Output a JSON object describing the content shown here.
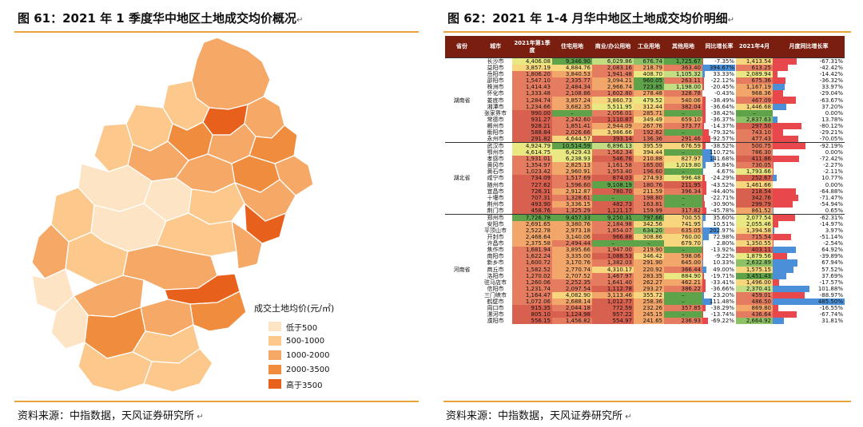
{
  "figure61": {
    "title": "图 61：2021 年 1 季度华中地区土地成交均价概况",
    "source": "资料来源：中指数据，天风证券研究所",
    "legend": {
      "title": "成交土地均价(元/㎡)",
      "items": [
        {
          "label": "低于500",
          "color": "#fde4c4"
        },
        {
          "label": "500-1000",
          "color": "#fcc88c"
        },
        {
          "label": "1000-2000",
          "color": "#f6a867"
        },
        {
          "label": "2000-3500",
          "color": "#ef8c3d"
        },
        {
          "label": "高于3500",
          "color": "#e8611c"
        }
      ]
    }
  },
  "figure62": {
    "title": "图 62：2021 年 1-4 月华中地区土地成交均价明细",
    "source": "资料来源：中指数据，天风证券研究所",
    "headers": [
      "省份",
      "城市",
      "2021年第1季度",
      "住宅用地",
      "商业/办公用地",
      "工业用地",
      "其他用地",
      "同比增长率",
      "2021年4月",
      "月度同比增长率"
    ],
    "groups": [
      {
        "province": "湖南省",
        "rows": [
          [
            "长沙市",
            "4,406.08",
            "9,346.90",
            "6,029.86",
            "676.74",
            "1,725.67",
            "-7.35%",
            "1,413.54",
            "-67.31%"
          ],
          [
            "益阳市",
            "3,857.19",
            "4,884.76",
            "2,083.16",
            "218.79",
            "363.40",
            "394.67%",
            "613.25",
            "-42.42%"
          ],
          [
            "岳阳市",
            "1,806.20",
            "3,840.53",
            "1,941.48",
            "408.70",
            "1,105.32",
            "33.33%",
            "2,089.94",
            "-14.42%"
          ],
          [
            "邵阳市",
            "1,547.10",
            "2,335.77",
            "3,094.21",
            "960.05",
            "263.11",
            "-22.12%",
            "675.36",
            "-36.32%"
          ],
          [
            "株洲市",
            "1,414.43",
            "2,484.34",
            "2,966.74",
            "723.85",
            "1,198.00",
            "-20.45%",
            "1,167.19",
            "33.97%"
          ],
          [
            "怀化市",
            "1,333.48",
            "2,108.86",
            "1,602.80",
            "278.48",
            "328.78",
            "-0.43%",
            "968.36",
            "-29.04%"
          ],
          [
            "娄底市",
            "1,284.74",
            "3,857.24",
            "3,860.73",
            "479.52",
            "540.06",
            "-38.49%",
            "467.09",
            "-63.67%"
          ],
          [
            "湘潭市",
            "1,234.66",
            "3,682.35",
            "5,511.95",
            "312.44",
            "382.04",
            "-36.64%",
            "1,446.68",
            "37.20%"
          ],
          [
            "张家界市",
            "990.00",
            "–",
            "2,056.01",
            "285.71",
            "–",
            "-38.42%",
            "–",
            "0.00%"
          ],
          [
            "常德市",
            "931.27",
            "2,242.60",
            "1,110.87",
            "349.49",
            "659.10",
            "-36.37%",
            "2,837.63",
            "13.78%"
          ],
          [
            "郴州市",
            "928.21",
            "1,851.41",
            "2,944.09",
            "267.76",
            "373.77",
            "-14.37%",
            "297.50",
            "-80.12%"
          ],
          [
            "衡阳市",
            "588.84",
            "2,026.66",
            "3,986.66",
            "192.82",
            "–",
            "-79.32%",
            "743.10",
            "-29.21%"
          ],
          [
            "永州市",
            "291.82",
            "4,644.57",
            "393.14",
            "136.36",
            "291.46",
            "-92.57%",
            "477.43",
            "-70.05%"
          ]
        ]
      },
      {
        "province": "湖北省",
        "rows": [
          [
            "武汉市",
            "4,924.79",
            "10,514.59",
            "6,896.13",
            "395.59",
            "676.59",
            "-38.52%",
            "500.75",
            "-92.19%"
          ],
          [
            "鄂州市",
            "4,614.75",
            "6,429.43",
            "1,562.34",
            "394.44",
            "–",
            "110.72%",
            "786.30",
            "0.00%"
          ],
          [
            "孝感市",
            "1,931.01",
            "6,238.93",
            "546.76",
            "210.88",
            "827.97",
            "141.68%",
            "411.86",
            "-72.42%"
          ],
          [
            "黄冈市",
            "1,354.97",
            "2,825.13",
            "1,161.58",
            "165.00",
            "1,019.80",
            "35.84%",
            "730.05",
            "-2.27%"
          ],
          [
            "黄石市",
            "1,023.42",
            "2,960.91",
            "1,953.40",
            "196.60",
            "–",
            "4.67%",
            "1,793.66",
            "-2.11%"
          ],
          [
            "咸宁市",
            "734.09",
            "1,517.69",
            "874.03",
            "274.93",
            "996.48",
            "-24.29%",
            "252.67",
            "10.77%"
          ],
          [
            "随州市",
            "727.62",
            "1,596.60",
            "9,108.19",
            "180.76",
            "211.95",
            "-43.52%",
            "1,461.66",
            "0.00%"
          ],
          [
            "宜昌市",
            "726.31",
            "2,912.87",
            "780.70",
            "211.59",
            "396.34",
            "-44.40%",
            "218.54",
            "-64.88%"
          ],
          [
            "十堰市",
            "707.31",
            "1,328.61",
            "–",
            "198.80",
            "–",
            "-22.71%",
            "342.76",
            "-71.47%"
          ],
          [
            "荆州市",
            "493.90",
            "3,336.15",
            "482.73",
            "163.81",
            "–",
            "-30.90%",
            "299.79",
            "-54.94%"
          ],
          [
            "荆门市",
            "458.76",
            "1,325.29",
            "1,121.17",
            "159.99",
            "317.82",
            "-45.78%",
            "861.52",
            "0.65%"
          ]
        ]
      },
      {
        "province": "河南省",
        "rows": [
          [
            "郑州市",
            "7,726.78",
            "9,457.33",
            "9,250.31",
            "797.66",
            "700.55",
            "35.60%",
            "2,077.54",
            "-62.31%"
          ],
          [
            "安阳市",
            "2,691.65",
            "3,380.76",
            "2,184.98",
            "342.56",
            "741.95",
            "10.51%",
            "2,055.46",
            "-14.97%"
          ],
          [
            "平顶山市",
            "2,522.78",
            "2,973.18",
            "1,854.07",
            "634.20",
            "635.05",
            "202.97%",
            "1,394.58",
            "3.97%"
          ],
          [
            "开封市",
            "2,468.64",
            "3,140.06",
            "966.88",
            "308.86",
            "760.00",
            "72.98%",
            "715.54",
            "-51.14%"
          ],
          [
            "许昌市",
            "2,375.58",
            "2,494.44",
            "–",
            "–",
            "679.70",
            "2.80%",
            "1,350.55",
            "-2.54%"
          ],
          [
            "焦作市",
            "1,681.94",
            "3,895.66",
            "1,947.00",
            "219.90",
            "–",
            "-13.92%",
            "403.11",
            "64.92%"
          ],
          [
            "南阳市",
            "1,622.24",
            "3,335.00",
            "1,088.53",
            "346.42",
            "598.06",
            "-9.22%",
            "1,879.56",
            "-39.89%"
          ],
          [
            "新乡市",
            "1,600.72",
            "3,170.76",
            "1,382.03",
            "291.90",
            "645.00",
            "10.33%",
            "2,632.89",
            "67.94%"
          ],
          [
            "商丘市",
            "1,582.52",
            "2,770.74",
            "4,310.17",
            "220.92",
            "366.44",
            "49.00%",
            "1,575.15",
            "57.52%"
          ],
          [
            "洛阳市",
            "1,270.02",
            "2,707.52",
            "1,467.97",
            "283.35",
            "884.90",
            "-19.71%",
            "3,451.43",
            "37.69%"
          ],
          [
            "驻马店市",
            "1,260.06",
            "2,252.35",
            "1,641.40",
            "262.27",
            "462.21",
            "-33.41%",
            "1,496.00",
            "-17.57%"
          ],
          [
            "信阳市",
            "1,231.74",
            "2,097.54",
            "1,112.78",
            "293.27",
            "386.22",
            "-36.66%",
            "2,370.41",
            "101.88%"
          ],
          [
            "三门峡市",
            "1,164.47",
            "4,082.90",
            "3,113.46",
            "355.72",
            "–",
            "23.20%",
            "459.01",
            "-88.97%"
          ],
          [
            "鹤壁市",
            "1,072.06",
            "2,688.14",
            "1,012.77",
            "258.36",
            "–",
            "111.48%",
            "486.50",
            "485.50%"
          ],
          [
            "周口市",
            "915.35",
            "2,044.18",
            "772.59",
            "232.26",
            "357.85",
            "-38.29%",
            "869.80",
            "-16.55%"
          ],
          [
            "漯河市",
            "805.10",
            "1,124.98",
            "957.22",
            "245.15",
            "–",
            "-13.74%",
            "436.64",
            "-67.74%"
          ],
          [
            "濮阳市",
            "556.15",
            "1,456.82",
            "554.97",
            "241.65",
            "236.93",
            "-69.22%",
            "2,664.92",
            "31.81%"
          ]
        ]
      }
    ]
  }
}
